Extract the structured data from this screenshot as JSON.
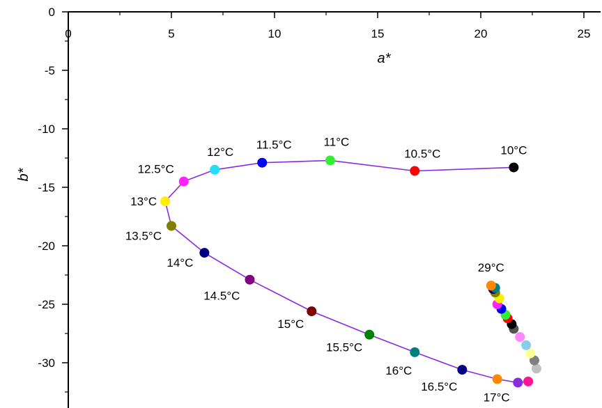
{
  "chart_data": {
    "type": "scatter",
    "title": "",
    "xlabel": "a*",
    "ylabel": "b*",
    "xlim": [
      0,
      25.7
    ],
    "ylim": [
      -33.2,
      0
    ],
    "x_axis_position": "top",
    "grid": false,
    "legend": "none",
    "line_color": "#8a2be2",
    "x_ticks": [
      0,
      5,
      10,
      15,
      20,
      25
    ],
    "y_ticks": [
      0,
      -5,
      -10,
      -15,
      -20,
      -25,
      -30
    ],
    "labeled_points": [
      {
        "label": "10°C",
        "x": 21.6,
        "y": -13.3,
        "color": "#000000"
      },
      {
        "label": "10.5°C",
        "x": 16.8,
        "y": -13.6,
        "color": "#ff0000"
      },
      {
        "label": "11°C",
        "x": 12.7,
        "y": -12.7,
        "color": "#33ee33"
      },
      {
        "label": "11.5°C",
        "x": 9.4,
        "y": -12.9,
        "color": "#0000ee"
      },
      {
        "label": "12°C",
        "x": 7.1,
        "y": -13.5,
        "color": "#22ddff"
      },
      {
        "label": "12.5°C",
        "x": 5.6,
        "y": -14.5,
        "color": "#ff22ff"
      },
      {
        "label": "13°C",
        "x": 4.7,
        "y": -16.2,
        "color": "#ffee00"
      },
      {
        "label": "13.5°C",
        "x": 5.0,
        "y": -18.3,
        "color": "#808000"
      },
      {
        "label": "14°C",
        "x": 6.6,
        "y": -20.6,
        "color": "#000080"
      },
      {
        "label": "14.5°C",
        "x": 8.8,
        "y": -22.9,
        "color": "#800080"
      },
      {
        "label": "15°C",
        "x": 11.8,
        "y": -25.6,
        "color": "#800000"
      },
      {
        "label": "15.5°C",
        "x": 14.6,
        "y": -27.6,
        "color": "#008000"
      },
      {
        "label": "16°C",
        "x": 16.8,
        "y": -29.1,
        "color": "#008080"
      },
      {
        "label": "16.5°C",
        "x": 19.1,
        "y": -30.6,
        "color": "#000080"
      },
      {
        "label": "17°C",
        "x": 20.8,
        "y": -31.4,
        "color": "#ff8800"
      }
    ],
    "unlabeled_points": [
      {
        "x": 21.8,
        "y": -31.7,
        "color": "#8a2be2"
      },
      {
        "x": 22.3,
        "y": -31.6,
        "color": "#ff1493"
      },
      {
        "x": 22.7,
        "y": -30.5,
        "color": "#c0c0c0"
      },
      {
        "x": 22.6,
        "y": -29.8,
        "color": "#808080"
      },
      {
        "x": 22.4,
        "y": -29.2,
        "color": "#ffff99"
      },
      {
        "x": 22.2,
        "y": -28.5,
        "color": "#87ceeb"
      },
      {
        "x": 21.9,
        "y": -27.8,
        "color": "#ff88ff"
      },
      {
        "x": 21.6,
        "y": -27.1,
        "color": "#555555"
      },
      {
        "x": 21.5,
        "y": -26.7,
        "color": "#000000"
      },
      {
        "x": 21.3,
        "y": -26.2,
        "color": "#ff0000"
      },
      {
        "x": 21.2,
        "y": -25.9,
        "color": "#33ee33"
      },
      {
        "x": 21.0,
        "y": -25.4,
        "color": "#0000ee"
      },
      {
        "x": 20.8,
        "y": -25.0,
        "color": "#ff22ff"
      },
      {
        "x": 20.9,
        "y": -24.5,
        "color": "#ffee00"
      },
      {
        "x": 20.7,
        "y": -24.0,
        "color": "#808000"
      },
      {
        "x": 20.6,
        "y": -23.7,
        "color": "#000080"
      },
      {
        "x": 20.7,
        "y": -23.6,
        "color": "#008080"
      }
    ],
    "last_point": {
      "label": "29°C",
      "x": 20.5,
      "y": -23.4,
      "color": "#ff8800"
    }
  }
}
